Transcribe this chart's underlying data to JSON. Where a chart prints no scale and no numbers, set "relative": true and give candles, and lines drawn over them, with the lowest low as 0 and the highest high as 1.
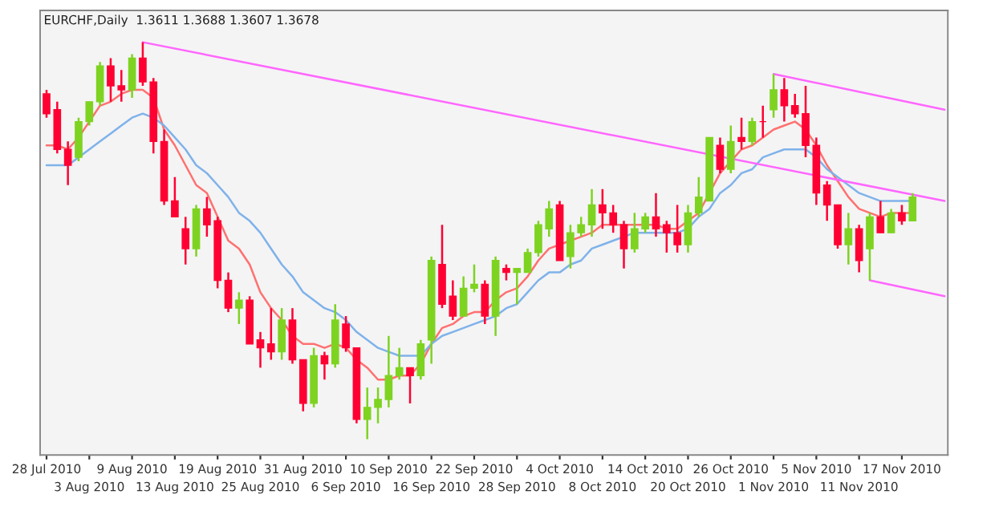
{
  "chart_data": {
    "type": "candlestick",
    "title": "EURCHF,Daily  1.3611 1.3688 1.3607 1.3678",
    "relative": true,
    "categories": [
      "28 Jul 2010",
      null,
      null,
      null,
      "3 Aug 2010",
      null,
      null,
      null,
      "9 Aug 2010",
      null,
      null,
      null,
      "13 Aug 2010",
      null,
      null,
      null,
      "19 Aug 2010",
      null,
      null,
      null,
      "25 Aug 2010",
      null,
      null,
      null,
      "31 Aug 2010",
      null,
      null,
      null,
      "6 Sep 2010",
      null,
      null,
      null,
      "10 Sep 2010",
      null,
      null,
      null,
      "16 Sep 2010",
      null,
      null,
      null,
      "22 Sep 2010",
      null,
      null,
      null,
      "28 Sep 2010",
      null,
      null,
      null,
      "4 Oct 2010",
      null,
      null,
      null,
      "8 Oct 2010",
      null,
      null,
      null,
      "14 Oct 2010",
      null,
      null,
      null,
      "20 Oct 2010",
      null,
      null,
      null,
      "26 Oct 2010",
      null,
      null,
      null,
      "1 Nov 2010",
      null,
      null,
      null,
      "5 Nov 2010",
      null,
      null,
      null,
      "11 Nov 2010",
      null,
      null,
      null,
      "17 Nov 2010",
      null,
      null,
      null,
      null
    ],
    "ohlc": [
      [
        0.87,
        0.88,
        0.81,
        0.82
      ],
      [
        0.83,
        0.85,
        0.72,
        0.73
      ],
      [
        0.73,
        0.75,
        0.64,
        0.69
      ],
      [
        0.71,
        0.81,
        0.7,
        0.8
      ],
      [
        0.8,
        0.85,
        0.79,
        0.85
      ],
      [
        0.85,
        0.95,
        0.84,
        0.94
      ],
      [
        0.94,
        0.96,
        0.85,
        0.89
      ],
      [
        0.89,
        0.93,
        0.85,
        0.88
      ],
      [
        0.88,
        0.97,
        0.86,
        0.96
      ],
      [
        0.96,
        1.0,
        0.89,
        0.9
      ],
      [
        0.9,
        0.91,
        0.72,
        0.75
      ],
      [
        0.75,
        0.78,
        0.59,
        0.6
      ],
      [
        0.6,
        0.66,
        0.56,
        0.56
      ],
      [
        0.53,
        0.56,
        0.44,
        0.48
      ],
      [
        0.48,
        0.59,
        0.46,
        0.58
      ],
      [
        0.58,
        0.61,
        0.51,
        0.54
      ],
      [
        0.55,
        0.56,
        0.38,
        0.4
      ],
      [
        0.4,
        0.42,
        0.32,
        0.33
      ],
      [
        0.33,
        0.37,
        0.29,
        0.35
      ],
      [
        0.35,
        0.36,
        0.24,
        0.24
      ],
      [
        0.25,
        0.27,
        0.18,
        0.23
      ],
      [
        0.24,
        0.33,
        0.2,
        0.22
      ],
      [
        0.22,
        0.33,
        0.2,
        0.3
      ],
      [
        0.3,
        0.33,
        0.19,
        0.2
      ],
      [
        0.2,
        0.2,
        0.07,
        0.09
      ],
      [
        0.09,
        0.23,
        0.08,
        0.21
      ],
      [
        0.21,
        0.22,
        0.15,
        0.19
      ],
      [
        0.19,
        0.34,
        0.18,
        0.3
      ],
      [
        0.29,
        0.31,
        0.22,
        0.23
      ],
      [
        0.23,
        0.23,
        0.04,
        0.05
      ],
      [
        0.05,
        0.13,
        0.0,
        0.08
      ],
      [
        0.08,
        0.13,
        0.04,
        0.1
      ],
      [
        0.1,
        0.26,
        0.08,
        0.16
      ],
      [
        0.16,
        0.23,
        0.15,
        0.18
      ],
      [
        0.18,
        0.18,
        0.09,
        0.16
      ],
      [
        0.16,
        0.25,
        0.15,
        0.24
      ],
      [
        0.25,
        0.46,
        0.19,
        0.45
      ],
      [
        0.44,
        0.54,
        0.33,
        0.34
      ],
      [
        0.36,
        0.4,
        0.3,
        0.31
      ],
      [
        0.31,
        0.41,
        0.31,
        0.38
      ],
      [
        0.38,
        0.44,
        0.37,
        0.39
      ],
      [
        0.39,
        0.4,
        0.29,
        0.31
      ],
      [
        0.31,
        0.46,
        0.26,
        0.45
      ],
      [
        0.43,
        0.44,
        0.4,
        0.42
      ],
      [
        0.42,
        0.43,
        0.34,
        0.43
      ],
      [
        0.42,
        0.48,
        0.42,
        0.47
      ],
      [
        0.47,
        0.55,
        0.46,
        0.54
      ],
      [
        0.53,
        0.6,
        0.51,
        0.58
      ],
      [
        0.59,
        0.6,
        0.45,
        0.45
      ],
      [
        0.46,
        0.54,
        0.43,
        0.52
      ],
      [
        0.52,
        0.56,
        0.51,
        0.54
      ],
      [
        0.54,
        0.63,
        0.51,
        0.59
      ],
      [
        0.59,
        0.63,
        0.53,
        0.57
      ],
      [
        0.57,
        0.59,
        0.52,
        0.54
      ],
      [
        0.54,
        0.55,
        0.43,
        0.48
      ],
      [
        0.48,
        0.57,
        0.47,
        0.53
      ],
      [
        0.53,
        0.57,
        0.52,
        0.56
      ],
      [
        0.56,
        0.62,
        0.51,
        0.53
      ],
      [
        0.54,
        0.55,
        0.47,
        0.52
      ],
      [
        0.52,
        0.59,
        0.47,
        0.49
      ],
      [
        0.49,
        0.59,
        0.47,
        0.57
      ],
      [
        0.57,
        0.66,
        0.56,
        0.61
      ],
      [
        0.6,
        0.76,
        0.6,
        0.76
      ],
      [
        0.74,
        0.76,
        0.67,
        0.68
      ],
      [
        0.68,
        0.79,
        0.67,
        0.75
      ],
      [
        0.76,
        0.81,
        0.73,
        0.75
      ],
      [
        0.75,
        0.81,
        0.74,
        0.8
      ],
      [
        0.8,
        0.84,
        0.76,
        0.8
      ],
      [
        0.83,
        0.92,
        0.81,
        0.88
      ],
      [
        0.88,
        0.91,
        0.8,
        0.84
      ],
      [
        0.84,
        0.87,
        0.81,
        0.82
      ],
      [
        0.82,
        0.89,
        0.71,
        0.74
      ],
      [
        0.74,
        0.76,
        0.59,
        0.62
      ],
      [
        0.64,
        0.65,
        0.55,
        0.59
      ],
      [
        0.59,
        0.59,
        0.48,
        0.49
      ],
      [
        0.49,
        0.57,
        0.44,
        0.53
      ],
      [
        0.53,
        0.54,
        0.42,
        0.45
      ],
      [
        0.48,
        0.57,
        0.4,
        0.56
      ],
      [
        0.56,
        0.6,
        0.52,
        0.52
      ],
      [
        0.52,
        0.58,
        0.52,
        0.57
      ],
      [
        0.57,
        0.59,
        0.54,
        0.55
      ],
      [
        0.55,
        0.62,
        0.55,
        0.61
      ],
      null,
      null,
      null
    ],
    "colors": [
      "#ff0033",
      "#ff0033",
      "#ff0033",
      "#7ed321",
      "#7ed321",
      "#7ed321",
      "#ff0033",
      "#ff0033",
      "#7ed321",
      "#ff0033",
      "#ff0033",
      "#ff0033",
      "#ff0033",
      "#ff0033",
      "#7ed321",
      "#ff0033",
      "#ff0033",
      "#ff0033",
      "#7ed321",
      "#ff0033",
      "#ff0033",
      "#ff0033",
      "#7ed321",
      "#ff0033",
      "#ff0033",
      "#7ed321",
      "#ff0033",
      "#7ed321",
      "#ff0033",
      "#ff0033",
      "#7ed321",
      "#7ed321",
      "#7ed321",
      "#7ed321",
      "#ff0033",
      "#7ed321",
      "#7ed321",
      "#ff0033",
      "#ff0033",
      "#7ed321",
      "#7ed321",
      "#ff0033",
      "#7ed321",
      "#ff0033",
      "#7ed321",
      "#7ed321",
      "#7ed321",
      "#7ed321",
      "#ff0033",
      "#7ed321",
      "#7ed321",
      "#7ed321",
      "#ff0033",
      "#ff0033",
      "#ff0033",
      "#7ed321",
      "#7ed321",
      "#ff0033",
      "#ff0033",
      "#ff0033",
      "#7ed321",
      "#7ed321",
      "#7ed321",
      "#ff0033",
      "#7ed321",
      "#ff0033",
      "#7ed321",
      "#ff0033",
      "#7ed321",
      "#ff0033",
      "#ff0033",
      "#ff0033",
      "#ff0033",
      "#ff0033",
      "#ff0033",
      "#7ed321",
      "#ff0033",
      "#7ed321",
      "#ff0033",
      "#7ed321",
      "#ff0033",
      "#7ed321",
      null,
      null,
      null
    ],
    "series": [
      {
        "type": "line",
        "color": "#ff7070",
        "values": [
          0.74,
          0.74,
          0.73,
          0.76,
          0.8,
          0.84,
          0.85,
          0.87,
          0.88,
          0.88,
          0.86,
          0.78,
          0.74,
          0.69,
          0.64,
          0.62,
          0.56,
          0.5,
          0.48,
          0.44,
          0.37,
          0.33,
          0.3,
          0.26,
          0.24,
          0.24,
          0.23,
          0.24,
          0.23,
          0.2,
          0.18,
          0.15,
          0.15,
          0.16,
          0.16,
          0.19,
          0.24,
          0.28,
          0.29,
          0.31,
          0.32,
          0.32,
          0.35,
          0.37,
          0.38,
          0.41,
          0.45,
          0.48,
          0.49,
          0.5,
          0.51,
          0.52,
          0.54,
          0.54,
          0.54,
          0.54,
          0.54,
          0.54,
          0.53,
          0.53,
          0.55,
          0.57,
          0.62,
          0.67,
          0.7,
          0.73,
          0.74,
          0.76,
          0.78,
          0.79,
          0.8,
          0.78,
          0.74,
          0.69,
          0.65,
          0.61,
          0.58,
          0.57,
          0.56,
          0.57,
          0.57,
          0.57,
          null,
          null,
          null
        ]
      },
      {
        "type": "line",
        "color": "#7fb2ea",
        "values": [
          0.69,
          0.69,
          0.69,
          0.71,
          0.73,
          0.75,
          0.77,
          0.79,
          0.81,
          0.82,
          0.81,
          0.79,
          0.76,
          0.73,
          0.69,
          0.67,
          0.64,
          0.61,
          0.57,
          0.55,
          0.52,
          0.48,
          0.44,
          0.41,
          0.37,
          0.35,
          0.33,
          0.32,
          0.3,
          0.27,
          0.25,
          0.23,
          0.22,
          0.21,
          0.21,
          0.21,
          0.24,
          0.26,
          0.27,
          0.28,
          0.29,
          0.3,
          0.31,
          0.33,
          0.34,
          0.37,
          0.4,
          0.42,
          0.42,
          0.44,
          0.45,
          0.48,
          0.49,
          0.5,
          0.51,
          0.52,
          0.52,
          0.52,
          0.52,
          0.52,
          0.53,
          0.56,
          0.58,
          0.62,
          0.64,
          0.67,
          0.68,
          0.71,
          0.72,
          0.73,
          0.73,
          0.73,
          0.71,
          0.68,
          0.66,
          0.64,
          0.62,
          0.61,
          0.6,
          0.6,
          0.6,
          0.6,
          null,
          null,
          null
        ]
      },
      {
        "type": "line",
        "color": "#ff66ff",
        "values": [
          null,
          null,
          null,
          null,
          null,
          null,
          null,
          null,
          null,
          1.0,
          null,
          null,
          null,
          null,
          null,
          null,
          null,
          null,
          null,
          null,
          null,
          null,
          null,
          null,
          null,
          null,
          null,
          null,
          null,
          null,
          null,
          null,
          null,
          null,
          null,
          null,
          null,
          null,
          null,
          null,
          null,
          null,
          null,
          null,
          null,
          null,
          null,
          null,
          null,
          null,
          null,
          null,
          null,
          null,
          null,
          null,
          null,
          null,
          null,
          null,
          null,
          null,
          null,
          null,
          null,
          null,
          null,
          null,
          null,
          null,
          null,
          null,
          null,
          null,
          null,
          null,
          null,
          null,
          null,
          null,
          null,
          null,
          null,
          null,
          0.6
        ]
      },
      {
        "type": "line",
        "color": "#ff66ff",
        "values": [
          null,
          null,
          null,
          null,
          null,
          null,
          null,
          null,
          null,
          null,
          null,
          null,
          null,
          null,
          null,
          null,
          null,
          null,
          null,
          null,
          null,
          null,
          null,
          null,
          null,
          null,
          null,
          null,
          null,
          null,
          null,
          null,
          null,
          null,
          null,
          null,
          null,
          null,
          null,
          null,
          null,
          null,
          null,
          null,
          null,
          null,
          null,
          null,
          null,
          null,
          null,
          null,
          null,
          null,
          null,
          null,
          null,
          null,
          null,
          null,
          null,
          null,
          null,
          null,
          null,
          null,
          null,
          null,
          0.92,
          null,
          null,
          null,
          null,
          null,
          null,
          null,
          null,
          null,
          null,
          null,
          null,
          null,
          null,
          null,
          0.83
        ]
      },
      {
        "type": "line",
        "color": "#ff66ff",
        "values": [
          null,
          null,
          null,
          null,
          null,
          null,
          null,
          null,
          null,
          null,
          null,
          null,
          null,
          null,
          null,
          null,
          null,
          null,
          null,
          null,
          null,
          null,
          null,
          null,
          null,
          null,
          null,
          null,
          null,
          null,
          null,
          null,
          null,
          null,
          null,
          null,
          null,
          null,
          null,
          null,
          null,
          null,
          null,
          null,
          null,
          null,
          null,
          null,
          null,
          null,
          null,
          null,
          null,
          null,
          null,
          null,
          null,
          null,
          null,
          null,
          null,
          null,
          null,
          null,
          null,
          null,
          null,
          null,
          null,
          null,
          null,
          null,
          null,
          null,
          null,
          null,
          null,
          0.4,
          null,
          null,
          null,
          null,
          null,
          null,
          0.36
        ]
      }
    ]
  }
}
